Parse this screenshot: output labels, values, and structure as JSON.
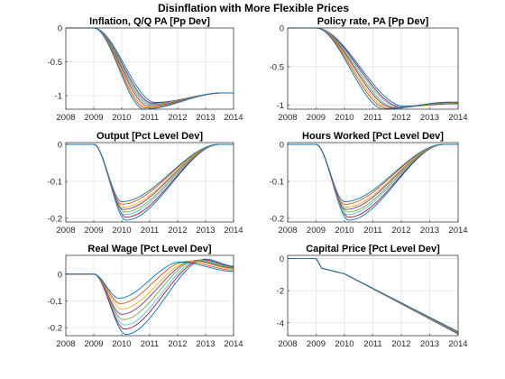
{
  "figure_title": "Disinflation with More Flexible Prices",
  "series_colors": [
    "#0072BD",
    "#D95319",
    "#EDB120",
    "#7E2F8E",
    "#77AC30",
    "#4DBEEE",
    "#A2142F",
    "#0072BD"
  ],
  "chart_data": [
    {
      "type": "line",
      "title": "Inflation, Q/Q PA [Pp Dev]",
      "xlim": [
        2008,
        2014
      ],
      "ylim": [
        -1.2,
        0
      ],
      "xticks": [
        "2008",
        "2009",
        "2010",
        "2011",
        "2012",
        "2013",
        "2014"
      ],
      "yticks": [
        "0",
        "-0.5",
        "-1"
      ],
      "ytick_values": [
        0,
        -0.5,
        -1
      ],
      "grid": true,
      "series_summary": "8 lines, 0 until 2009, falling to a trough near -1.1 to -1.2 around 2010.7-2011.2, then recovering to about -0.96 by 2014",
      "pre_flat_until": 2009,
      "trough_x": [
        2010.8,
        2010.85,
        2010.9,
        2010.95,
        2011.0,
        2011.05,
        2011.1,
        2011.2
      ],
      "trough_y": [
        -1.2,
        -1.18,
        -1.17,
        -1.15,
        -1.13,
        -1.12,
        -1.11,
        -1.1
      ],
      "end_y": [
        -0.96,
        -0.96,
        -0.96,
        -0.96,
        -0.96,
        -0.96,
        -0.96,
        -0.96
      ]
    },
    {
      "type": "line",
      "title": "Policy rate, PA [Pp Dev]",
      "xlim": [
        2008,
        2014
      ],
      "ylim": [
        -1.05,
        0
      ],
      "xticks": [
        "2008",
        "2009",
        "2010",
        "2011",
        "2012",
        "2013",
        "2014"
      ],
      "yticks": [
        "0",
        "-0.5",
        "-1"
      ],
      "ytick_values": [
        0,
        -0.5,
        -1
      ],
      "grid": true,
      "pre_flat_until": 2009,
      "trough_x": [
        2011.4,
        2011.5,
        2011.6,
        2011.7,
        2011.8,
        2011.9,
        2012.0,
        2012.1
      ],
      "trough_y": [
        -1.05,
        -1.04,
        -1.04,
        -1.03,
        -1.03,
        -1.02,
        -1.02,
        -1.01
      ],
      "end_y": [
        -0.96,
        -0.96,
        -0.96,
        -0.96,
        -0.97,
        -0.97,
        -0.98,
        -0.98
      ]
    },
    {
      "type": "line",
      "title": "Output [Pct Level Dev]",
      "xlim": [
        2008,
        2014
      ],
      "ylim": [
        -0.21,
        0.005
      ],
      "xticks": [
        "2008",
        "2009",
        "2010",
        "2011",
        "2012",
        "2013",
        "2014"
      ],
      "yticks": [
        "0",
        "-0.1",
        "-0.2"
      ],
      "ytick_values": [
        0,
        -0.1,
        -0.2
      ],
      "grid": true,
      "pre_flat_until": 2009,
      "trough_x": [
        2010.0,
        2010.0,
        2010.05,
        2010.05,
        2010.1,
        2010.1,
        2010.15,
        2010.15
      ],
      "trough_y": [
        -0.155,
        -0.162,
        -0.17,
        -0.176,
        -0.183,
        -0.19,
        -0.197,
        -0.205
      ],
      "end_y": [
        0,
        0,
        0,
        0,
        0,
        0,
        0,
        0
      ]
    },
    {
      "type": "line",
      "title": "Hours Worked [Pct Level Dev]",
      "xlim": [
        2008,
        2014
      ],
      "ylim": [
        -0.21,
        0.005
      ],
      "xticks": [
        "2008",
        "2009",
        "2010",
        "2011",
        "2012",
        "2013",
        "2014"
      ],
      "yticks": [
        "0",
        "-0.1",
        "-0.2"
      ],
      "ytick_values": [
        0,
        -0.1,
        -0.2
      ],
      "grid": true,
      "pre_flat_until": 2009,
      "trough_x": [
        2010.0,
        2010.0,
        2010.05,
        2010.05,
        2010.1,
        2010.1,
        2010.15,
        2010.15
      ],
      "trough_y": [
        -0.155,
        -0.162,
        -0.17,
        -0.176,
        -0.183,
        -0.19,
        -0.197,
        -0.205
      ],
      "end_y": [
        0,
        0,
        0,
        0,
        0,
        0,
        0,
        0
      ]
    },
    {
      "type": "line",
      "title": "Real Wage [Pct Level Dev]",
      "xlim": [
        2008,
        2014
      ],
      "ylim": [
        -0.23,
        0.07
      ],
      "xticks": [
        "2008",
        "2009",
        "2010",
        "2011",
        "2012",
        "2013",
        "2014"
      ],
      "yticks": [
        "0",
        "-0.1",
        "-0.2"
      ],
      "ytick_values": [
        0,
        -0.1,
        -0.2
      ],
      "grid": true,
      "pre_flat_until": 2009,
      "trough_x": [
        2009.9,
        2009.95,
        2010.0,
        2010.0,
        2010.05,
        2010.1,
        2010.1,
        2010.15
      ],
      "trough_y": [
        -0.09,
        -0.11,
        -0.13,
        -0.15,
        -0.17,
        -0.19,
        -0.205,
        -0.225
      ],
      "peak_x": [
        2012.1,
        2012.3,
        2012.5,
        2012.6,
        2012.7,
        2012.8,
        2012.9,
        2013.0
      ],
      "peak_y": [
        0.045,
        0.047,
        0.049,
        0.05,
        0.052,
        0.053,
        0.054,
        0.056
      ],
      "end_y": [
        0.01,
        0.015,
        0.02,
        0.022,
        0.024,
        0.026,
        0.028,
        0.03
      ]
    },
    {
      "type": "line",
      "title": "Capital Price [Pct Level Dev]",
      "xlim": [
        2008,
        2014
      ],
      "ylim": [
        -4.8,
        0.2
      ],
      "xticks": [
        "2008",
        "2009",
        "2010",
        "2011",
        "2012",
        "2013",
        "2014"
      ],
      "yticks": [
        "0",
        "-2",
        "-4"
      ],
      "ytick_values": [
        0,
        -2,
        -4
      ],
      "grid": true,
      "pre_flat_until": 2009,
      "knee_x": 2009.2,
      "knee_y": -0.6,
      "mid_x": 2010.0,
      "mid_y": -0.95,
      "end_y": [
        -4.55,
        -4.58,
        -4.6,
        -4.62,
        -4.64,
        -4.66,
        -4.68,
        -4.7
      ]
    }
  ]
}
